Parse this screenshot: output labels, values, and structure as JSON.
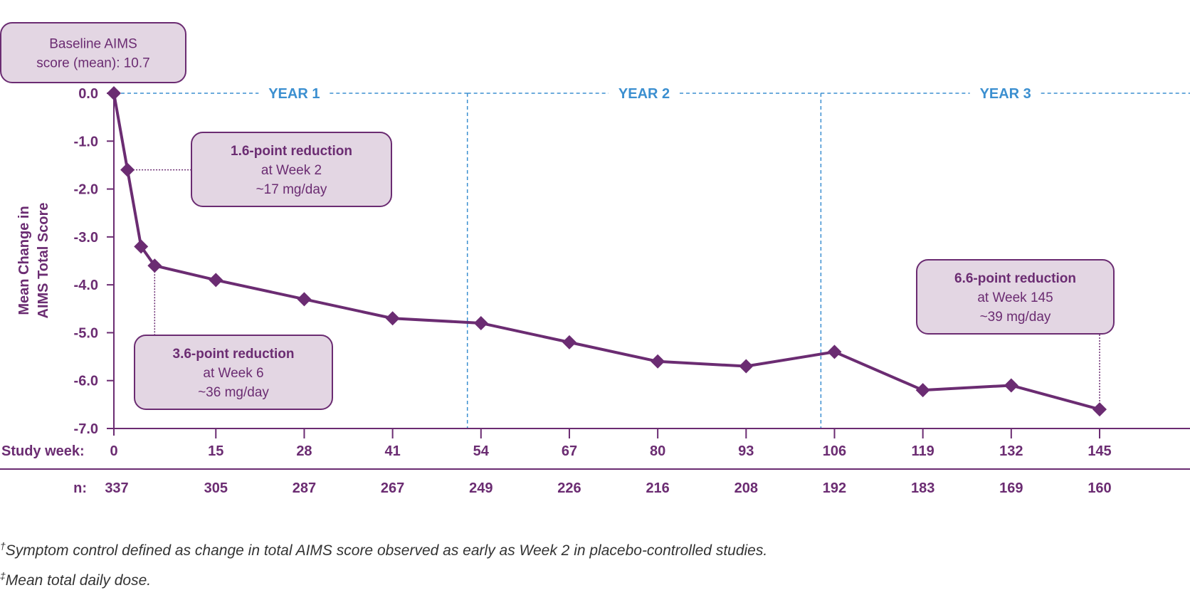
{
  "colors": {
    "line": "#6b2c72",
    "box_fill": "#e3d6e3",
    "year_divider": "#3b8fd0",
    "footnote": "#333333"
  },
  "chart_data": {
    "type": "line",
    "ylabel_lines": [
      "Mean Change in",
      "AIMS Total Score"
    ],
    "ylim": [
      -7.0,
      0.0
    ],
    "yticks": [
      "0.0",
      "-1.0",
      "-2.0",
      "-3.0",
      "-4.0",
      "-5.0",
      "-6.0",
      "-7.0"
    ],
    "ytick_values": [
      0,
      -1,
      -2,
      -3,
      -4,
      -5,
      -6,
      -7
    ],
    "xlim": [
      0,
      145
    ],
    "x_axis_label": "Study week:",
    "xticks": [
      0,
      15,
      28,
      41,
      54,
      67,
      80,
      93,
      106,
      119,
      132,
      145
    ],
    "n_label": "n:",
    "n_values": [
      "337",
      "305",
      "287",
      "267",
      "249",
      "226",
      "216",
      "208",
      "192",
      "183",
      "169",
      "160"
    ],
    "x": [
      0,
      2,
      4,
      6,
      15,
      28,
      41,
      54,
      67,
      80,
      93,
      106,
      119,
      132,
      145
    ],
    "y": [
      0.0,
      -1.6,
      -3.2,
      -3.6,
      -3.9,
      -4.3,
      -4.7,
      -4.8,
      -5.2,
      -5.6,
      -5.7,
      -5.4,
      -6.2,
      -6.1,
      -6.6
    ],
    "marker": "diamond",
    "grid": false,
    "year_dividers": [
      52,
      104
    ],
    "year_labels": [
      "YEAR 1",
      "YEAR 2",
      "YEAR 3"
    ],
    "baseline_box": [
      "Baseline AIMS",
      "score (mean): 10.7"
    ],
    "annotations": [
      {
        "week": 2,
        "lines": [
          "1.6-point reduction",
          "at Week 2",
          "~17 mg/day"
        ]
      },
      {
        "week": 6,
        "lines": [
          "3.6-point reduction",
          "at Week 6",
          "~36 mg/day"
        ]
      },
      {
        "week": 145,
        "lines": [
          "6.6-point reduction",
          "at Week 145",
          "~39 mg/day"
        ]
      }
    ]
  },
  "footnotes": [
    {
      "mark": "†",
      "text": "Symptom control defined as change in total AIMS score observed as early as Week 2 in placebo-controlled studies."
    },
    {
      "mark": "‡",
      "text": "Mean total daily dose."
    }
  ]
}
